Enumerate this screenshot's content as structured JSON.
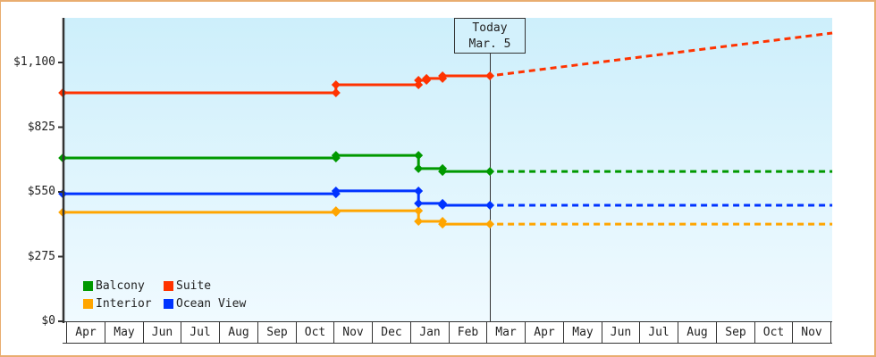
{
  "chart_data": {
    "type": "line",
    "title": "",
    "xlabel": "",
    "ylabel": "",
    "categories": [
      "Apr",
      "May",
      "Jun",
      "Jul",
      "Aug",
      "Sep",
      "Oct",
      "Nov",
      "Dec",
      "Jan",
      "Feb",
      "Mar",
      "Apr",
      "May",
      "Jun",
      "Jul",
      "Aug",
      "Sep",
      "Oct",
      "Nov"
    ],
    "ylim": [
      0,
      1290
    ],
    "yticks": [
      {
        "value": 0,
        "label": "$0"
      },
      {
        "value": 275,
        "label": "$275"
      },
      {
        "value": 550,
        "label": "$550"
      },
      {
        "value": 825,
        "label": "$825"
      },
      {
        "value": 1100,
        "label": "$1,100"
      }
    ],
    "grid": false,
    "legend_position": "lower-left inside plot",
    "today": {
      "label": "Today",
      "date": "Mar. 5",
      "x": 11.09
    },
    "x_unit": "month index from Apr (0 = start of Apr)",
    "series": [
      {
        "name": "Balcony",
        "color": "#009900",
        "points": [
          [
            -0.09,
            694
          ],
          [
            7.06,
            694
          ],
          [
            7.06,
            705
          ],
          [
            9.22,
            705
          ],
          [
            9.22,
            649
          ],
          [
            9.85,
            649
          ],
          [
            9.85,
            637
          ],
          [
            11.09,
            637
          ]
        ],
        "forecast": [
          [
            11.09,
            637
          ],
          [
            20.05,
            637
          ]
        ]
      },
      {
        "name": "Suite",
        "color": "#ff3300",
        "points": [
          [
            -0.09,
            971
          ],
          [
            7.06,
            971
          ],
          [
            7.06,
            1005
          ],
          [
            9.22,
            1005
          ],
          [
            9.22,
            1024
          ],
          [
            9.43,
            1024
          ],
          [
            9.43,
            1032
          ],
          [
            9.85,
            1032
          ],
          [
            9.85,
            1043
          ],
          [
            11.09,
            1043
          ]
        ],
        "forecast": [
          [
            11.09,
            1043
          ],
          [
            20.05,
            1225
          ]
        ]
      },
      {
        "name": "Interior",
        "color": "#ffa500",
        "points": [
          [
            -0.09,
            463
          ],
          [
            7.06,
            463
          ],
          [
            7.06,
            470
          ],
          [
            9.22,
            470
          ],
          [
            9.22,
            425
          ],
          [
            9.85,
            425
          ],
          [
            9.85,
            413
          ],
          [
            11.09,
            413
          ]
        ],
        "forecast": [
          [
            11.09,
            413
          ],
          [
            20.05,
            413
          ]
        ]
      },
      {
        "name": "Ocean View",
        "color": "#0033ff",
        "points": [
          [
            -0.09,
            542
          ],
          [
            7.06,
            542
          ],
          [
            7.06,
            554
          ],
          [
            9.22,
            554
          ],
          [
            9.22,
            501
          ],
          [
            9.85,
            501
          ],
          [
            9.85,
            493
          ],
          [
            11.09,
            493
          ]
        ],
        "forecast": [
          [
            11.09,
            493
          ],
          [
            20.05,
            493
          ]
        ]
      }
    ]
  },
  "legend": {
    "items": [
      {
        "label": "Balcony",
        "color": "#009900"
      },
      {
        "label": "Suite",
        "color": "#ff3300"
      },
      {
        "label": "Interior",
        "color": "#ffa500"
      },
      {
        "label": "Ocean View",
        "color": "#0033ff"
      }
    ]
  },
  "today_marker": {
    "line1": "Today",
    "line2": "Mar. 5"
  },
  "colors": {
    "frame": "#e9ad70",
    "axis": "#333333",
    "plot_top": "#cdeffb",
    "plot_bottom": "#f0faff"
  }
}
